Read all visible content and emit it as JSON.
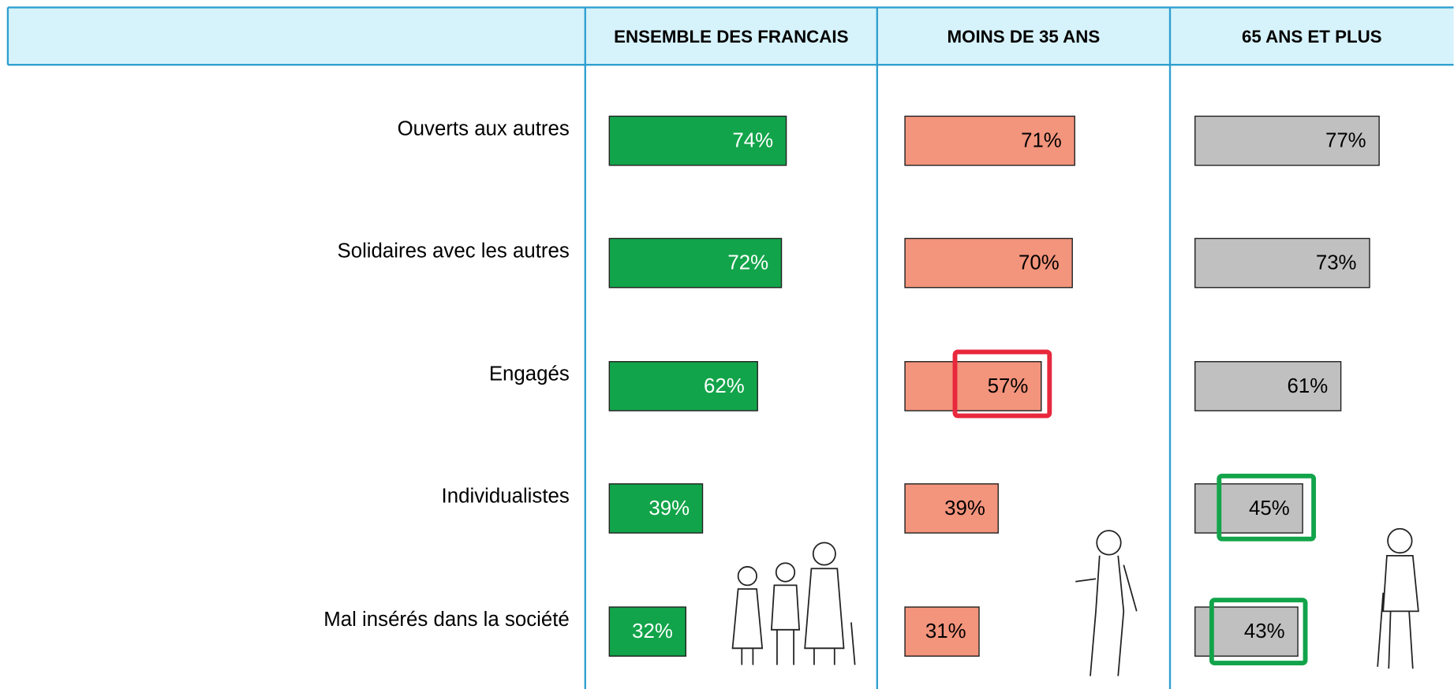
{
  "chart_data": {
    "type": "bar",
    "categories": [
      "Ouverts aux autres",
      "Solidaires avec les autres",
      "Engagés",
      "Individualistes",
      "Mal insérés dans la société"
    ],
    "series": [
      {
        "name": "ENSEMBLE DES FRANCAIS",
        "color": "#12a44a",
        "label_color": "#ffffff",
        "values": [
          74,
          72,
          62,
          39,
          32
        ],
        "value_labels": [
          "74%",
          "72%",
          "62%",
          "39%",
          "32%"
        ]
      },
      {
        "name": "MOINS DE 35 ANS",
        "color": "#f3947c",
        "label_color": "#000000",
        "values": [
          71,
          70,
          57,
          39,
          31
        ],
        "value_labels": [
          "71%",
          "70%",
          "57%",
          "39%",
          "31%"
        ]
      },
      {
        "name": "65 ANS ET PLUS",
        "color": "#c0c0c0",
        "label_color": "#000000",
        "values": [
          77,
          73,
          61,
          45,
          43
        ],
        "value_labels": [
          "77%",
          "73%",
          "61%",
          "45%",
          "43%"
        ]
      }
    ]
  }
}
